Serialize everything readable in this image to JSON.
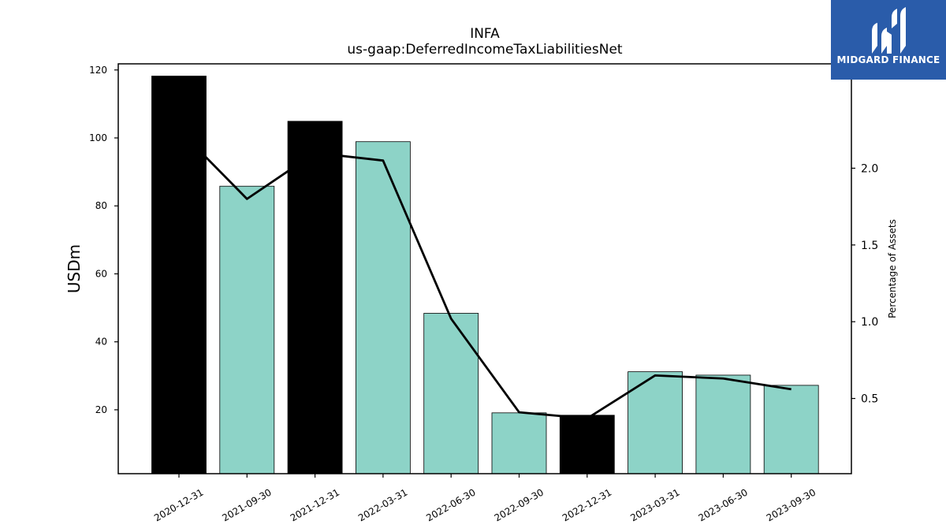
{
  "chart_data": {
    "type": "bar",
    "title": "INFA",
    "subtitle": "us-gaap:DeferredIncomeTaxLiabilitiesNet",
    "ylabel": "USDm",
    "y2label": "Percentage of Assets",
    "categories": [
      "2020-12-31",
      "2021-09-30",
      "2021-12-31",
      "2022-03-31",
      "2022-06-30",
      "2022-09-30",
      "2022-12-31",
      "2023-03-31",
      "2023-06-30",
      "2023-09-30"
    ],
    "values": [
      118.2,
      85.8,
      104.9,
      98.9,
      48.4,
      19.1,
      18.4,
      31.2,
      30.2,
      27.2
    ],
    "bar_colors": [
      "#000000",
      "#8dd3c7",
      "#000000",
      "#8dd3c7",
      "#8dd3c7",
      "#8dd3c7",
      "#000000",
      "#8dd3c7",
      "#8dd3c7",
      "#8dd3c7"
    ],
    "line_series": {
      "values": [
        2.25,
        1.8,
        2.1,
        2.05,
        1.02,
        0.41,
        0.37,
        0.65,
        0.63,
        0.56
      ],
      "color": "#000000"
    },
    "ylim": [
      1.2,
      121.8
    ],
    "y2lim": [
      0.01,
      2.68
    ],
    "yticks": [
      20,
      40,
      60,
      80,
      100,
      120
    ],
    "y2ticks": [
      0.5,
      1.0,
      1.5,
      2.0
    ],
    "y2ticklabels": [
      "0.5",
      "1.0",
      "1.5",
      "2.0"
    ],
    "grid": false,
    "legend": "none"
  },
  "logo": {
    "text": "MIDGARD FINANCE",
    "background": "#2a5caa"
  }
}
